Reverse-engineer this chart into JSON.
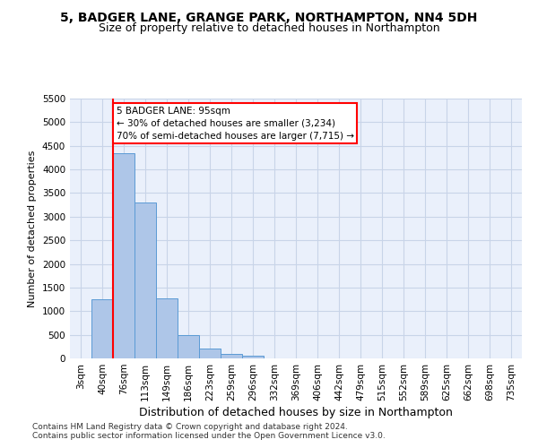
{
  "title1": "5, BADGER LANE, GRANGE PARK, NORTHAMPTON, NN4 5DH",
  "title2": "Size of property relative to detached houses in Northampton",
  "xlabel": "Distribution of detached houses by size in Northampton",
  "ylabel": "Number of detached properties",
  "footnote1": "Contains HM Land Registry data © Crown copyright and database right 2024.",
  "footnote2": "Contains public sector information licensed under the Open Government Licence v3.0.",
  "bar_labels": [
    "3sqm",
    "40sqm",
    "76sqm",
    "113sqm",
    "149sqm",
    "186sqm",
    "223sqm",
    "259sqm",
    "296sqm",
    "332sqm",
    "369sqm",
    "406sqm",
    "442sqm",
    "479sqm",
    "515sqm",
    "552sqm",
    "589sqm",
    "625sqm",
    "662sqm",
    "698sqm",
    "735sqm"
  ],
  "bar_values": [
    0,
    1260,
    4340,
    3300,
    1280,
    490,
    215,
    90,
    50,
    0,
    0,
    0,
    0,
    0,
    0,
    0,
    0,
    0,
    0,
    0,
    0
  ],
  "bar_color": "#aec6e8",
  "bar_edge_color": "#5b9bd5",
  "grid_color": "#c8d4e8",
  "background_color": "#eaf0fb",
  "annotation_label": "5 BADGER LANE: 95sqm",
  "annotation_line1": "← 30% of detached houses are smaller (3,234)",
  "annotation_line2": "70% of semi-detached houses are larger (7,715) →",
  "red_line_bar_index": 1.5,
  "ylim": [
    0,
    5500
  ],
  "yticks": [
    0,
    500,
    1000,
    1500,
    2000,
    2500,
    3000,
    3500,
    4000,
    4500,
    5000,
    5500
  ],
  "title_fontsize": 10,
  "subtitle_fontsize": 9,
  "footnote_fontsize": 6.5,
  "ylabel_fontsize": 8,
  "xlabel_fontsize": 9,
  "tick_fontsize": 7.5,
  "annot_fontsize": 7.5
}
